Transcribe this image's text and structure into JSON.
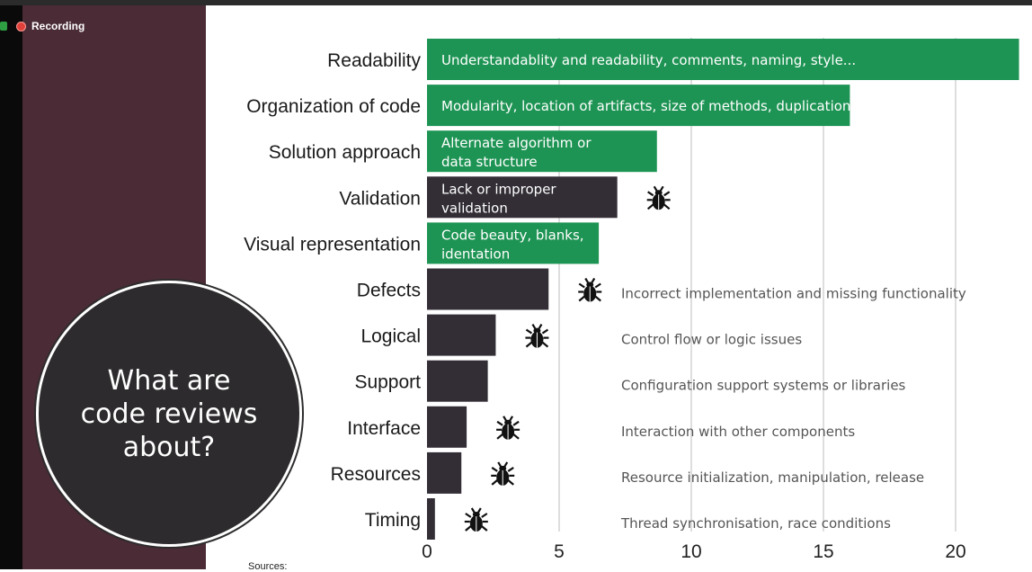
{
  "recording": {
    "label": "Recording"
  },
  "slide": {
    "circle_text": "What are\ncode reviews\nabout?",
    "sources_label": "Sources:"
  },
  "chart_data": {
    "type": "bar",
    "orientation": "horizontal",
    "categories": [
      "Readability",
      "Organization of code",
      "Solution approach",
      "Validation",
      "Visual representation",
      "Defects",
      "Logical",
      "Support",
      "Interface",
      "Resources",
      "Timing"
    ],
    "values": [
      22.4,
      16.0,
      8.7,
      7.2,
      6.5,
      4.6,
      2.6,
      2.3,
      1.5,
      1.3,
      0.3
    ],
    "bar_colors": [
      "#1e9454",
      "#1e9454",
      "#1e9454",
      "#332e36",
      "#1e9454",
      "#332e36",
      "#332e36",
      "#332e36",
      "#332e36",
      "#332e36",
      "#332e36"
    ],
    "bar_labels": [
      "Understandablity and readability, comments, naming, style...",
      "Modularity, location of artifacts, size of methods, duplication",
      "Alternate algorithm or\ndata structure",
      "Lack or improper\nvalidation",
      "Code beauty, blanks,\nidentation",
      "",
      "",
      "",
      "",
      "",
      ""
    ],
    "annotations": [
      "",
      "",
      "",
      "",
      "",
      "Incorrect implementation and missing functionality",
      "Control flow or logic issues",
      "Configuration support systems or libraries",
      "Interaction with other components",
      "Resource initialization, manipulation, release",
      "Thread synchronisation, race conditions"
    ],
    "bug_icons": [
      false,
      false,
      false,
      true,
      false,
      true,
      true,
      false,
      true,
      true,
      true
    ],
    "xticks": [
      0,
      5,
      10,
      15,
      20
    ],
    "xlim": [
      0,
      23
    ],
    "grid": "vertical",
    "colors": {
      "green": "#1e9454",
      "dark": "#332e36",
      "grid": "#d4d4d4",
      "annotation": "#555555"
    }
  }
}
